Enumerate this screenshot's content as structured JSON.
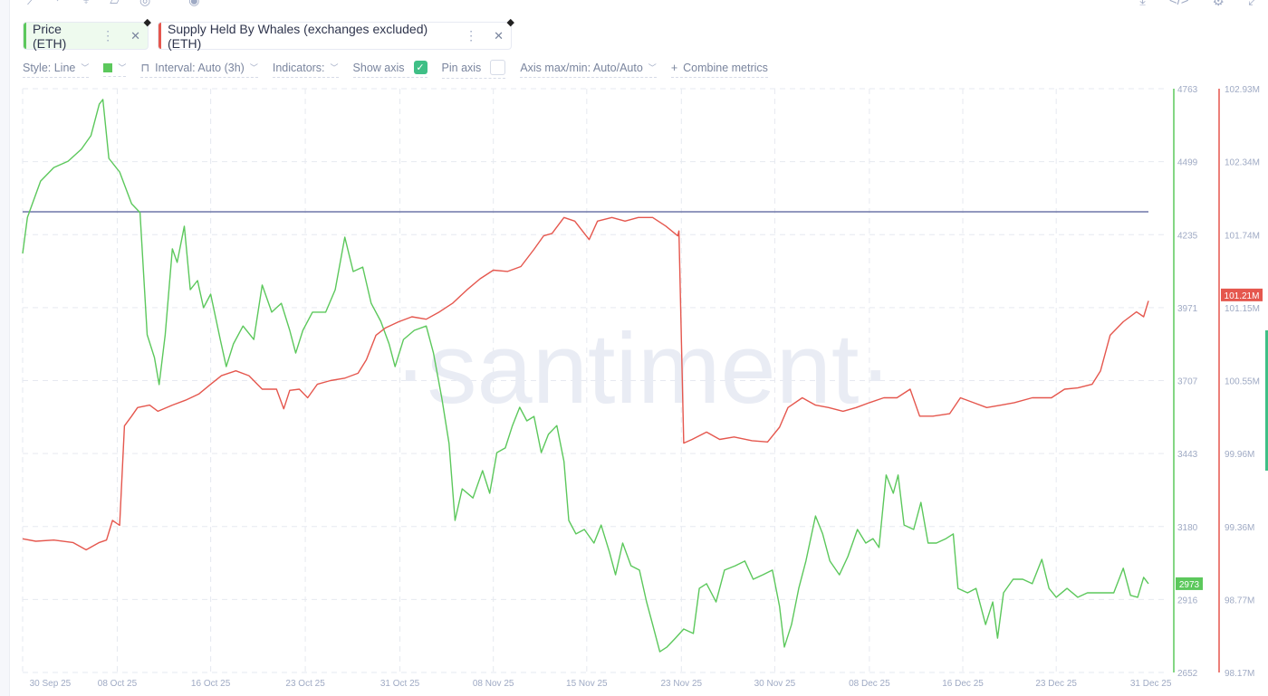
{
  "metrics": [
    {
      "label": "Price (ETH)",
      "color": "#5cc85c",
      "bg": "#eefaee"
    },
    {
      "label": "Supply Held By Whales (exchanges excluded) (ETH)",
      "color": "#e5574e",
      "bg": "#ffffff"
    }
  ],
  "settings": {
    "style": "Style: Line",
    "interval": "Interval: Auto (3h)",
    "indicators": "Indicators:",
    "show_axis": "Show axis",
    "pin_axis": "Pin axis",
    "axis_maxmin": "Axis max/min: Auto/Auto",
    "combine": "Combine metrics",
    "color": "#5cc85c"
  },
  "watermark": "·santiment·",
  "chart_data": {
    "type": "line",
    "title": "",
    "x_unit": "days since 28 Sep 25",
    "xlim": [
      0,
      94
    ],
    "x_ticks": [
      {
        "label": "30 Sep 25",
        "day": 2.3
      },
      {
        "label": "08 Oct 25",
        "day": 7.9
      },
      {
        "label": "16 Oct 25",
        "day": 15.7
      },
      {
        "label": "23 Oct 25",
        "day": 23.6
      },
      {
        "label": "31 Oct 25",
        "day": 31.5
      },
      {
        "label": "08 Nov 25",
        "day": 39.3
      },
      {
        "label": "15 Nov 25",
        "day": 47.1
      },
      {
        "label": "23 Nov 25",
        "day": 55.0
      },
      {
        "label": "30 Nov 25",
        "day": 62.8
      },
      {
        "label": "08 Dec 25",
        "day": 70.7
      },
      {
        "label": "16 Dec 25",
        "day": 78.5
      },
      {
        "label": "23 Dec 25",
        "day": 86.3
      },
      {
        "label": "31 Dec 25",
        "day": 94.2
      }
    ],
    "price_axis": {
      "ylim": [
        2652,
        4763
      ],
      "ticks": [
        "4763",
        "4499",
        "4235",
        "3971",
        "3707",
        "3443",
        "3180",
        "2916",
        "2652"
      ],
      "color": "#5cc85c",
      "last_label": "2973"
    },
    "whale_axis": {
      "ylim": [
        98.17,
        102.93
      ],
      "ticks": [
        "102.93M",
        "102.34M",
        "101.74M",
        "101.15M",
        "100.55M",
        "99.96M",
        "99.36M",
        "98.77M",
        "98.17M"
      ],
      "color": "#e5574e",
      "last_label": "101.21M"
    },
    "horizontal_line": {
      "price": 4318,
      "color": "#6f77a8"
    },
    "series": [
      {
        "name": "Price (ETH)",
        "axis": "price",
        "color": "#5cc85c",
        "points": [
          [
            0,
            4167
          ],
          [
            0.4,
            4298
          ],
          [
            1.5,
            4429
          ],
          [
            2.6,
            4478
          ],
          [
            3.8,
            4501
          ],
          [
            4.9,
            4544
          ],
          [
            5.7,
            4593
          ],
          [
            6.4,
            4707
          ],
          [
            6.7,
            4724
          ],
          [
            7.2,
            4511
          ],
          [
            8.1,
            4462
          ],
          [
            9.1,
            4347
          ],
          [
            9.8,
            4315
          ],
          [
            10.4,
            3873
          ],
          [
            11.0,
            3791
          ],
          [
            11.4,
            3693
          ],
          [
            11.9,
            3873
          ],
          [
            12.5,
            4184
          ],
          [
            12.9,
            4135
          ],
          [
            13.5,
            4266
          ],
          [
            14.0,
            4036
          ],
          [
            14.6,
            4069
          ],
          [
            15.1,
            3971
          ],
          [
            15.7,
            4020
          ],
          [
            16.5,
            3856
          ],
          [
            17.0,
            3758
          ],
          [
            17.6,
            3840
          ],
          [
            18.4,
            3905
          ],
          [
            19.3,
            3856
          ],
          [
            20.0,
            4053
          ],
          [
            20.8,
            3955
          ],
          [
            21.6,
            3987
          ],
          [
            22.3,
            3889
          ],
          [
            22.8,
            3807
          ],
          [
            23.4,
            3889
          ],
          [
            24.2,
            3955
          ],
          [
            25.3,
            3955
          ],
          [
            26.1,
            4036
          ],
          [
            26.9,
            4226
          ],
          [
            27.6,
            4102
          ],
          [
            28.4,
            4118
          ],
          [
            29.1,
            3987
          ],
          [
            29.9,
            3922
          ],
          [
            30.6,
            3840
          ],
          [
            31.1,
            3758
          ],
          [
            31.8,
            3856
          ],
          [
            32.7,
            3889
          ],
          [
            33.7,
            3905
          ],
          [
            34.3,
            3807
          ],
          [
            35.0,
            3644
          ],
          [
            35.6,
            3480
          ],
          [
            36.1,
            3202
          ],
          [
            36.7,
            3316
          ],
          [
            37.6,
            3283
          ],
          [
            38.4,
            3382
          ],
          [
            39.0,
            3300
          ],
          [
            39.6,
            3447
          ],
          [
            40.3,
            3464
          ],
          [
            40.9,
            3545
          ],
          [
            41.5,
            3611
          ],
          [
            42.1,
            3562
          ],
          [
            42.7,
            3578
          ],
          [
            43.3,
            3447
          ],
          [
            43.9,
            3513
          ],
          [
            44.6,
            3545
          ],
          [
            45.2,
            3415
          ],
          [
            45.6,
            3202
          ],
          [
            46.2,
            3153
          ],
          [
            46.9,
            3169
          ],
          [
            47.7,
            3120
          ],
          [
            48.3,
            3185
          ],
          [
            49.0,
            3087
          ],
          [
            49.5,
            3005
          ],
          [
            50.1,
            3120
          ],
          [
            50.8,
            3038
          ],
          [
            51.5,
            3022
          ],
          [
            52.1,
            2907
          ],
          [
            52.6,
            2825
          ],
          [
            53.2,
            2727
          ],
          [
            53.8,
            2744
          ],
          [
            54.5,
            2776
          ],
          [
            55.2,
            2809
          ],
          [
            56.0,
            2793
          ],
          [
            56.5,
            2956
          ],
          [
            57.1,
            2973
          ],
          [
            57.9,
            2907
          ],
          [
            58.6,
            3022
          ],
          [
            59.5,
            3038
          ],
          [
            60.3,
            3055
          ],
          [
            61.0,
            2989
          ],
          [
            61.8,
            3005
          ],
          [
            62.6,
            3022
          ],
          [
            63.2,
            2891
          ],
          [
            63.6,
            2744
          ],
          [
            64.2,
            2825
          ],
          [
            64.8,
            2956
          ],
          [
            65.4,
            3055
          ],
          [
            66.2,
            3218
          ],
          [
            66.8,
            3153
          ],
          [
            67.4,
            3055
          ],
          [
            68.2,
            3005
          ],
          [
            68.9,
            3071
          ],
          [
            69.7,
            3169
          ],
          [
            70.4,
            3120
          ],
          [
            71.0,
            3136
          ],
          [
            71.5,
            3104
          ],
          [
            72.1,
            3366
          ],
          [
            72.7,
            3300
          ],
          [
            73.1,
            3366
          ],
          [
            73.6,
            3185
          ],
          [
            74.4,
            3169
          ],
          [
            75.0,
            3267
          ],
          [
            75.6,
            3120
          ],
          [
            76.3,
            3120
          ],
          [
            77.1,
            3136
          ],
          [
            77.7,
            3153
          ],
          [
            78.1,
            2956
          ],
          [
            78.9,
            2940
          ],
          [
            79.6,
            2956
          ],
          [
            80.4,
            2825
          ],
          [
            81.0,
            2907
          ],
          [
            81.4,
            2776
          ],
          [
            81.9,
            2940
          ],
          [
            82.7,
            2989
          ],
          [
            83.5,
            2989
          ],
          [
            84.3,
            2973
          ],
          [
            85.1,
            3061
          ],
          [
            85.7,
            2956
          ],
          [
            86.3,
            2924
          ],
          [
            87.2,
            2956
          ],
          [
            88.1,
            2924
          ],
          [
            88.9,
            2940
          ],
          [
            90.0,
            2940
          ],
          [
            91.1,
            2940
          ],
          [
            91.9,
            3029
          ],
          [
            92.5,
            2931
          ],
          [
            93.1,
            2924
          ],
          [
            93.6,
            2996
          ],
          [
            94.0,
            2973
          ]
        ]
      },
      {
        "name": "Supply Held By Whales (exchanges excluded) (ETH)",
        "axis": "whale",
        "unit": "M",
        "color": "#e5574e",
        "points": [
          [
            0,
            99.26
          ],
          [
            1.1,
            99.24
          ],
          [
            2.6,
            99.25
          ],
          [
            4.2,
            99.23
          ],
          [
            5.3,
            99.17
          ],
          [
            6.4,
            99.23
          ],
          [
            7.0,
            99.25
          ],
          [
            7.5,
            99.41
          ],
          [
            8.1,
            99.37
          ],
          [
            8.5,
            100.18
          ],
          [
            9.1,
            100.26
          ],
          [
            9.6,
            100.33
          ],
          [
            10.6,
            100.35
          ],
          [
            11.3,
            100.3
          ],
          [
            12.5,
            100.35
          ],
          [
            13.6,
            100.39
          ],
          [
            14.7,
            100.44
          ],
          [
            15.7,
            100.52
          ],
          [
            16.6,
            100.59
          ],
          [
            17.8,
            100.63
          ],
          [
            18.9,
            100.59
          ],
          [
            20.0,
            100.48
          ],
          [
            21.2,
            100.48
          ],
          [
            21.8,
            100.32
          ],
          [
            22.3,
            100.47
          ],
          [
            23.1,
            100.48
          ],
          [
            23.8,
            100.41
          ],
          [
            24.6,
            100.52
          ],
          [
            25.7,
            100.55
          ],
          [
            26.9,
            100.57
          ],
          [
            28.0,
            100.61
          ],
          [
            28.7,
            100.72
          ],
          [
            29.5,
            100.92
          ],
          [
            30.3,
            100.98
          ],
          [
            31.4,
            101.03
          ],
          [
            32.5,
            101.07
          ],
          [
            33.7,
            101.05
          ],
          [
            34.8,
            101.11
          ],
          [
            35.9,
            101.18
          ],
          [
            37.1,
            101.29
          ],
          [
            38.2,
            101.38
          ],
          [
            39.3,
            101.45
          ],
          [
            40.5,
            101.44
          ],
          [
            41.6,
            101.48
          ],
          [
            42.7,
            101.62
          ],
          [
            43.5,
            101.73
          ],
          [
            44.2,
            101.75
          ],
          [
            45.2,
            101.88
          ],
          [
            46.1,
            101.85
          ],
          [
            47.3,
            101.7
          ],
          [
            48.0,
            101.85
          ],
          [
            49.2,
            101.88
          ],
          [
            50.3,
            101.85
          ],
          [
            51.4,
            101.88
          ],
          [
            52.6,
            101.88
          ],
          [
            53.7,
            101.81
          ],
          [
            54.7,
            101.73
          ],
          [
            54.8,
            101.77
          ],
          [
            55.2,
            100.04
          ],
          [
            55.9,
            100.07
          ],
          [
            57.1,
            100.13
          ],
          [
            58.2,
            100.07
          ],
          [
            59.4,
            100.09
          ],
          [
            60.9,
            100.06
          ],
          [
            62.2,
            100.05
          ],
          [
            63.2,
            100.17
          ],
          [
            63.9,
            100.33
          ],
          [
            65.1,
            100.41
          ],
          [
            66.2,
            100.35
          ],
          [
            67.3,
            100.33
          ],
          [
            68.5,
            100.3
          ],
          [
            69.6,
            100.33
          ],
          [
            70.7,
            100.37
          ],
          [
            71.9,
            100.41
          ],
          [
            73.0,
            100.41
          ],
          [
            74.1,
            100.48
          ],
          [
            74.9,
            100.26
          ],
          [
            76.0,
            100.26
          ],
          [
            77.4,
            100.28
          ],
          [
            78.3,
            100.41
          ],
          [
            79.4,
            100.37
          ],
          [
            80.5,
            100.33
          ],
          [
            81.7,
            100.35
          ],
          [
            82.8,
            100.37
          ],
          [
            84.3,
            100.41
          ],
          [
            85.9,
            100.41
          ],
          [
            87.0,
            100.48
          ],
          [
            88.1,
            100.49
          ],
          [
            89.3,
            100.52
          ],
          [
            90.0,
            100.63
          ],
          [
            90.8,
            100.92
          ],
          [
            91.9,
            101.03
          ],
          [
            93.0,
            101.11
          ],
          [
            93.6,
            101.07
          ],
          [
            94.0,
            101.2
          ]
        ]
      }
    ]
  }
}
